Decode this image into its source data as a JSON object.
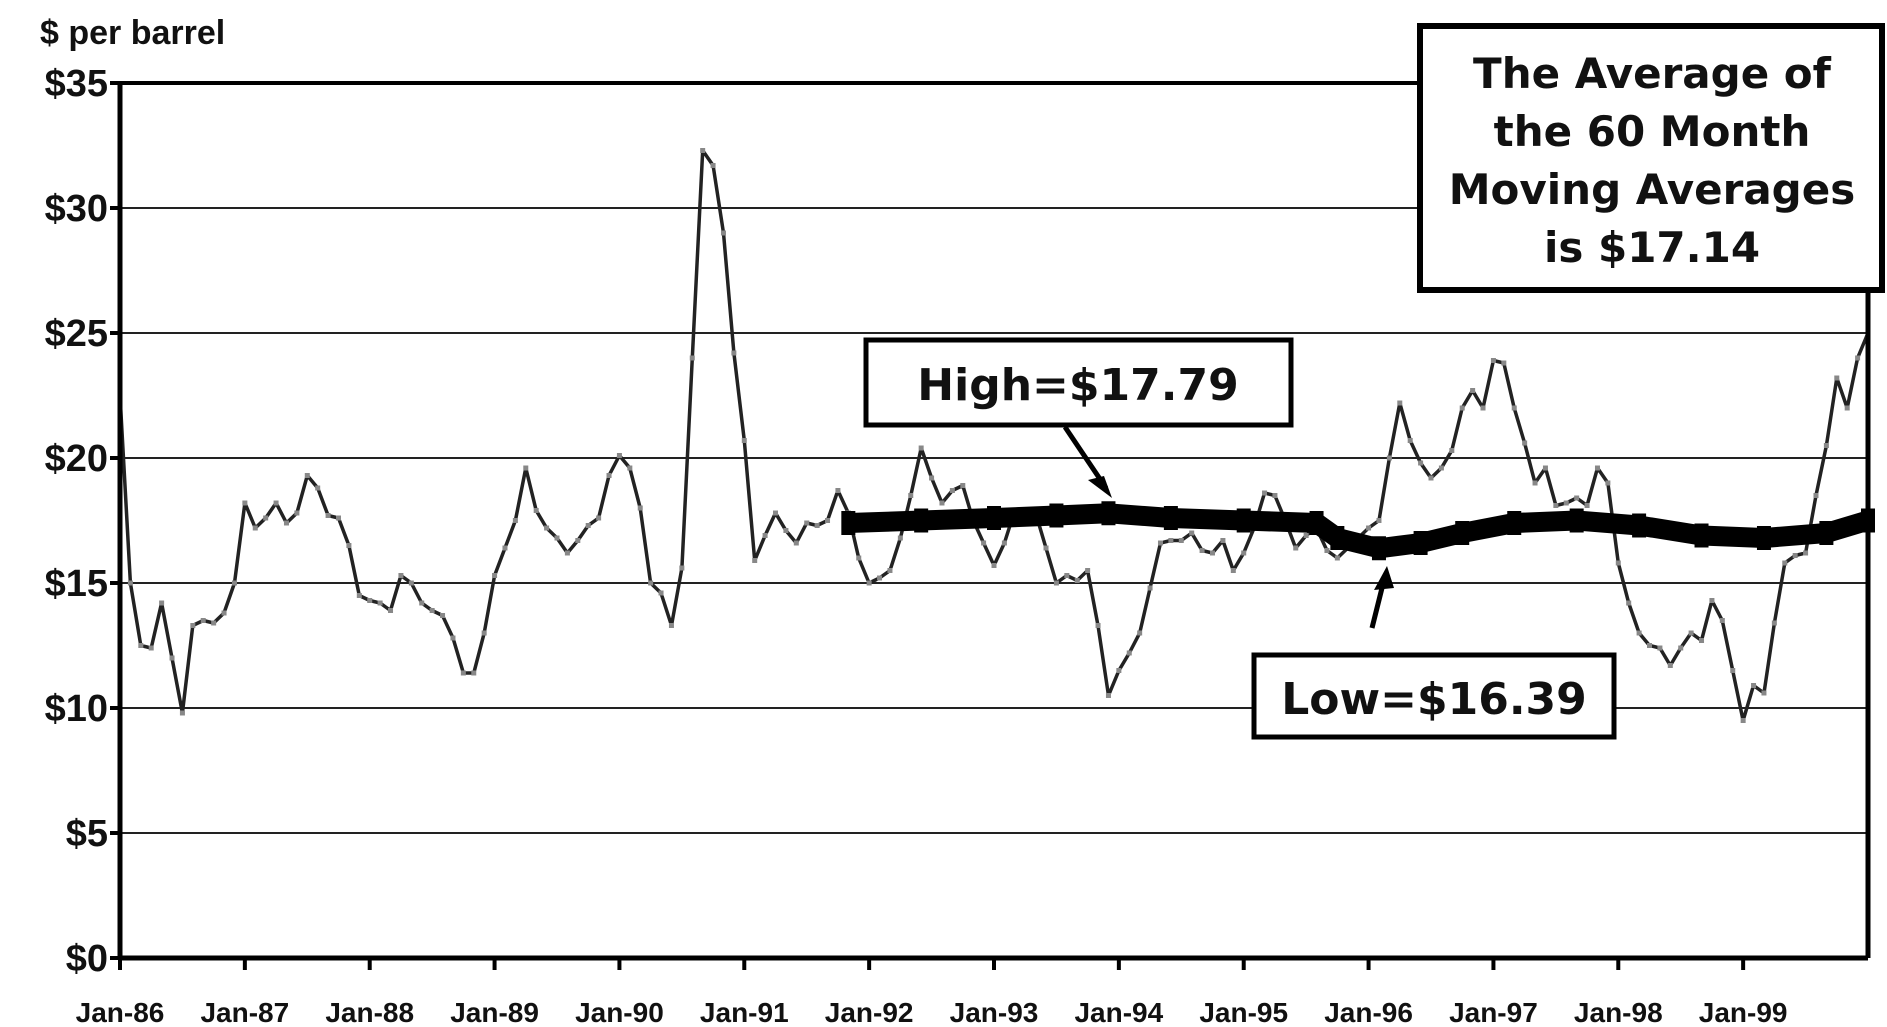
{
  "chart_data": {
    "type": "line",
    "ylabel": "$ per barrel",
    "ylim": [
      0,
      35
    ],
    "y_ticks": [
      "$0",
      "$5",
      "$10",
      "$15",
      "$20",
      "$25",
      "$30",
      "$35"
    ],
    "y_tick_values": [
      0,
      5,
      10,
      15,
      20,
      25,
      30,
      35
    ],
    "x_ticks": [
      "Jan-86",
      "Jan-87",
      "Jan-88",
      "Jan-89",
      "Jan-90",
      "Jan-91",
      "Jan-92",
      "Jan-93",
      "Jan-94",
      "Jan-95",
      "Jan-96",
      "Jan-97",
      "Jan-98",
      "Jan-99"
    ],
    "x_tick_values": [
      "1986-01",
      "1987-01",
      "1988-01",
      "1989-01",
      "1990-01",
      "1991-01",
      "1992-01",
      "1993-01",
      "1994-01",
      "1995-01",
      "1996-01",
      "1997-01",
      "1998-01",
      "1999-01"
    ],
    "xlim": [
      "1986-01",
      "2000-01"
    ],
    "grid": true,
    "series": [
      {
        "style": "thin-marker-line",
        "points": [
          [
            "1986-01",
            22.5
          ],
          [
            "1986-02",
            15.0
          ],
          [
            "1986-03",
            12.5
          ],
          [
            "1986-04",
            12.4
          ],
          [
            "1986-05",
            14.2
          ],
          [
            "1986-06",
            12.0
          ],
          [
            "1986-07",
            9.8
          ],
          [
            "1986-08",
            13.3
          ],
          [
            "1986-09",
            13.5
          ],
          [
            "1986-10",
            13.4
          ],
          [
            "1986-11",
            13.8
          ],
          [
            "1986-12",
            15.0
          ],
          [
            "1987-01",
            18.2
          ],
          [
            "1987-02",
            17.2
          ],
          [
            "1987-03",
            17.6
          ],
          [
            "1987-04",
            18.2
          ],
          [
            "1987-05",
            17.4
          ],
          [
            "1987-06",
            17.8
          ],
          [
            "1987-07",
            19.3
          ],
          [
            "1987-08",
            18.8
          ],
          [
            "1987-09",
            17.7
          ],
          [
            "1987-10",
            17.6
          ],
          [
            "1987-11",
            16.5
          ],
          [
            "1987-12",
            14.5
          ],
          [
            "1988-01",
            14.3
          ],
          [
            "1988-02",
            14.2
          ],
          [
            "1988-03",
            13.9
          ],
          [
            "1988-04",
            15.3
          ],
          [
            "1988-05",
            15.0
          ],
          [
            "1988-06",
            14.2
          ],
          [
            "1988-07",
            13.9
          ],
          [
            "1988-08",
            13.7
          ],
          [
            "1988-09",
            12.8
          ],
          [
            "1988-10",
            11.4
          ],
          [
            "1988-11",
            11.4
          ],
          [
            "1988-12",
            13.0
          ],
          [
            "1989-01",
            15.3
          ],
          [
            "1989-02",
            16.4
          ],
          [
            "1989-03",
            17.5
          ],
          [
            "1989-04",
            19.6
          ],
          [
            "1989-05",
            17.9
          ],
          [
            "1989-06",
            17.2
          ],
          [
            "1989-07",
            16.8
          ],
          [
            "1989-08",
            16.2
          ],
          [
            "1989-09",
            16.7
          ],
          [
            "1989-10",
            17.3
          ],
          [
            "1989-11",
            17.6
          ],
          [
            "1989-12",
            19.3
          ],
          [
            "1990-01",
            20.1
          ],
          [
            "1990-02",
            19.6
          ],
          [
            "1990-03",
            18.0
          ],
          [
            "1990-04",
            15.0
          ],
          [
            "1990-05",
            14.6
          ],
          [
            "1990-06",
            13.3
          ],
          [
            "1990-07",
            15.6
          ],
          [
            "1990-08",
            24.0
          ],
          [
            "1990-09",
            32.3
          ],
          [
            "1990-10",
            31.7
          ],
          [
            "1990-11",
            29.0
          ],
          [
            "1990-12",
            24.2
          ],
          [
            "1991-01",
            20.7
          ],
          [
            "1991-02",
            15.9
          ],
          [
            "1991-03",
            16.9
          ],
          [
            "1991-04",
            17.8
          ],
          [
            "1991-05",
            17.1
          ],
          [
            "1991-06",
            16.6
          ],
          [
            "1991-07",
            17.4
          ],
          [
            "1991-08",
            17.3
          ],
          [
            "1991-09",
            17.5
          ],
          [
            "1991-10",
            18.7
          ],
          [
            "1991-11",
            17.8
          ],
          [
            "1991-12",
            16.0
          ],
          [
            "1992-01",
            15.0
          ],
          [
            "1992-02",
            15.2
          ],
          [
            "1992-03",
            15.5
          ],
          [
            "1992-04",
            16.8
          ],
          [
            "1992-05",
            18.5
          ],
          [
            "1992-06",
            20.4
          ],
          [
            "1992-07",
            19.2
          ],
          [
            "1992-08",
            18.2
          ],
          [
            "1992-09",
            18.7
          ],
          [
            "1992-10",
            18.9
          ],
          [
            "1992-11",
            17.5
          ],
          [
            "1992-12",
            16.6
          ],
          [
            "1993-01",
            15.7
          ],
          [
            "1993-02",
            16.6
          ],
          [
            "1993-03",
            17.9
          ],
          [
            "1993-04",
            17.6
          ],
          [
            "1993-05",
            17.8
          ],
          [
            "1993-06",
            16.4
          ],
          [
            "1993-07",
            15.0
          ],
          [
            "1993-08",
            15.3
          ],
          [
            "1993-09",
            15.1
          ],
          [
            "1993-10",
            15.5
          ],
          [
            "1993-11",
            13.3
          ],
          [
            "1993-12",
            10.5
          ],
          [
            "1994-01",
            11.5
          ],
          [
            "1994-02",
            12.2
          ],
          [
            "1994-03",
            13.0
          ],
          [
            "1994-04",
            14.8
          ],
          [
            "1994-05",
            16.6
          ],
          [
            "1994-06",
            16.7
          ],
          [
            "1994-07",
            16.7
          ],
          [
            "1994-08",
            17.0
          ],
          [
            "1994-09",
            16.3
          ],
          [
            "1994-10",
            16.2
          ],
          [
            "1994-11",
            16.7
          ],
          [
            "1994-12",
            15.5
          ],
          [
            "1995-01",
            16.2
          ],
          [
            "1995-02",
            17.2
          ],
          [
            "1995-03",
            18.6
          ],
          [
            "1995-04",
            18.5
          ],
          [
            "1995-05",
            17.5
          ],
          [
            "1995-06",
            16.4
          ],
          [
            "1995-07",
            16.9
          ],
          [
            "1995-08",
            17.2
          ],
          [
            "1995-09",
            16.3
          ],
          [
            "1995-10",
            16.0
          ],
          [
            "1995-11",
            16.4
          ],
          [
            "1995-12",
            16.8
          ],
          [
            "1996-01",
            17.2
          ],
          [
            "1996-02",
            17.5
          ],
          [
            "1996-03",
            20.0
          ],
          [
            "1996-04",
            22.2
          ],
          [
            "1996-05",
            20.7
          ],
          [
            "1996-06",
            19.8
          ],
          [
            "1996-07",
            19.2
          ],
          [
            "1996-08",
            19.6
          ],
          [
            "1996-09",
            20.3
          ],
          [
            "1996-10",
            22.0
          ],
          [
            "1996-11",
            22.7
          ],
          [
            "1996-12",
            22.0
          ],
          [
            "1997-01",
            23.9
          ],
          [
            "1997-02",
            23.8
          ],
          [
            "1997-03",
            22.0
          ],
          [
            "1997-04",
            20.6
          ],
          [
            "1997-05",
            19.0
          ],
          [
            "1997-06",
            19.6
          ],
          [
            "1997-07",
            18.1
          ],
          [
            "1997-08",
            18.2
          ],
          [
            "1997-09",
            18.4
          ],
          [
            "1997-10",
            18.1
          ],
          [
            "1997-11",
            19.6
          ],
          [
            "1997-12",
            19.0
          ],
          [
            "1998-01",
            15.8
          ],
          [
            "1998-02",
            14.2
          ],
          [
            "1998-03",
            13.0
          ],
          [
            "1998-04",
            12.5
          ],
          [
            "1998-05",
            12.4
          ],
          [
            "1998-06",
            11.7
          ],
          [
            "1998-07",
            12.4
          ],
          [
            "1998-08",
            13.0
          ],
          [
            "1998-09",
            12.7
          ],
          [
            "1998-10",
            14.3
          ],
          [
            "1998-11",
            13.5
          ],
          [
            "1998-12",
            11.5
          ],
          [
            "1999-01",
            9.5
          ],
          [
            "1999-02",
            10.9
          ],
          [
            "1999-03",
            10.6
          ],
          [
            "1999-04",
            13.4
          ],
          [
            "1999-05",
            15.8
          ],
          [
            "1999-06",
            16.1
          ],
          [
            "1999-07",
            16.2
          ],
          [
            "1999-08",
            18.5
          ],
          [
            "1999-09",
            20.5
          ],
          [
            "1999-10",
            23.2
          ],
          [
            "1999-11",
            22.0
          ],
          [
            "1999-12",
            24.0
          ],
          [
            "2000-01",
            25.0
          ]
        ]
      },
      {
        "style": "thick-line",
        "points": [
          [
            "1991-11",
            17.4
          ],
          [
            "1992-06",
            17.5
          ],
          [
            "1993-01",
            17.6
          ],
          [
            "1993-07",
            17.7
          ],
          [
            "1993-12",
            17.79
          ],
          [
            "1994-06",
            17.6
          ],
          [
            "1995-01",
            17.5
          ],
          [
            "1995-08",
            17.4
          ],
          [
            "1995-10",
            16.8
          ],
          [
            "1996-02",
            16.39
          ],
          [
            "1996-06",
            16.6
          ],
          [
            "1996-10",
            17.0
          ],
          [
            "1997-03",
            17.4
          ],
          [
            "1997-09",
            17.5
          ],
          [
            "1998-03",
            17.3
          ],
          [
            "1998-09",
            16.9
          ],
          [
            "1999-03",
            16.8
          ],
          [
            "1999-09",
            17.0
          ],
          [
            "2000-01",
            17.5
          ]
        ]
      }
    ],
    "annotations": {
      "high": "High=$17.79",
      "low": "Low=$16.39",
      "note_lines": [
        "The Average of",
        "the 60 Month",
        "Moving Averages",
        "is $17.14"
      ]
    }
  }
}
